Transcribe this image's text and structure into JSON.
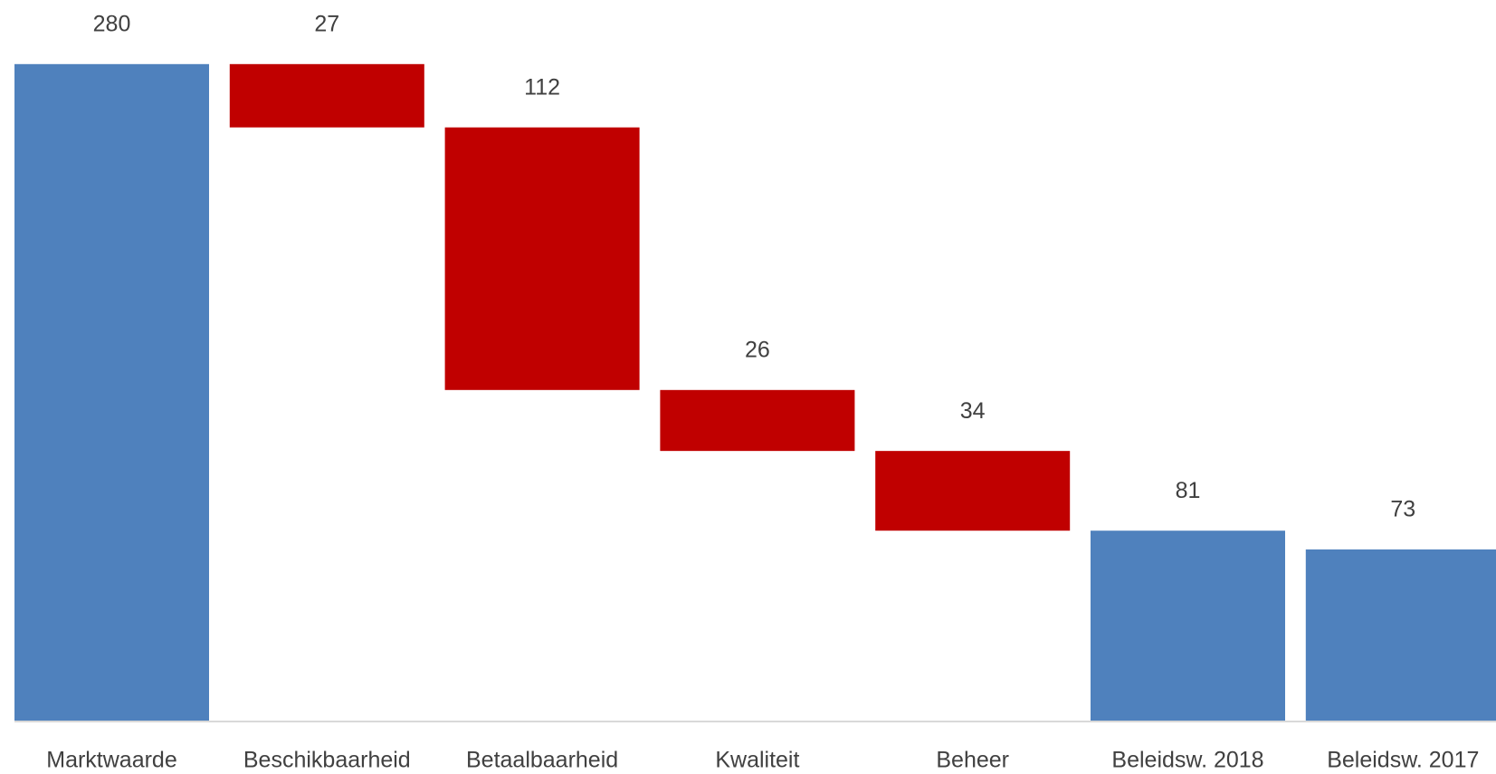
{
  "chart_data": {
    "type": "waterfall",
    "categories": [
      "Marktwaarde",
      "Beschikbaarheid",
      "Betaalbaarheid",
      "Kwaliteit",
      "Beheer",
      "Beleidsw. 2018",
      "Beleidsw. 2017"
    ],
    "values": [
      280,
      27,
      112,
      26,
      34,
      81,
      73
    ],
    "measures": [
      "total",
      "decrease",
      "decrease",
      "decrease",
      "decrease",
      "total",
      "total"
    ],
    "colors": {
      "total": "#4f81bd",
      "decrease": "#c00000"
    },
    "ylim": [
      0,
      300
    ]
  }
}
